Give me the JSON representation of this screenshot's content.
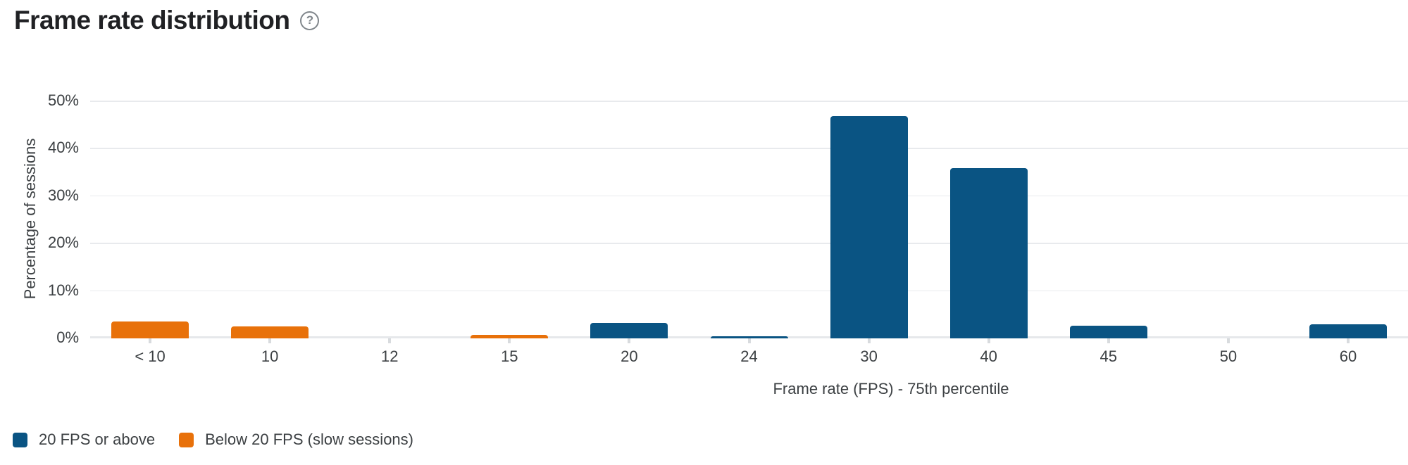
{
  "header": {
    "title": "Frame rate distribution",
    "help_glyph": "?"
  },
  "chart_data": {
    "type": "bar",
    "title": "Frame rate distribution",
    "xlabel": "Frame rate (FPS) - 75th percentile",
    "ylabel": "Percentage of sessions",
    "ylim": [
      0,
      50
    ],
    "yticks": [
      0,
      10,
      20,
      30,
      40,
      50
    ],
    "ytick_labels": [
      "0%",
      "10%",
      "20%",
      "30%",
      "40%",
      "50%"
    ],
    "grid": "horizontal",
    "legend_position": "bottom-left",
    "categories": [
      "< 10",
      "10",
      "12",
      "15",
      "20",
      "24",
      "30",
      "40",
      "45",
      "50",
      "60"
    ],
    "series": [
      {
        "name": "20 FPS or above",
        "color": "#0a5483",
        "values": [
          0,
          0,
          0,
          0,
          3.2,
          0.5,
          46.9,
          35.9,
          2.7,
          0,
          3.0
        ]
      },
      {
        "name": "Below 20 FPS (slow sessions)",
        "color": "#e8710a",
        "values": [
          3.5,
          2.5,
          0,
          0.8,
          0,
          0,
          0,
          0,
          0,
          0,
          0
        ]
      }
    ]
  },
  "colors": {
    "axis_text": "#3c4043",
    "grid_line": "#e8eaed",
    "title_text": "#202124",
    "help_icon": "#80868b"
  }
}
